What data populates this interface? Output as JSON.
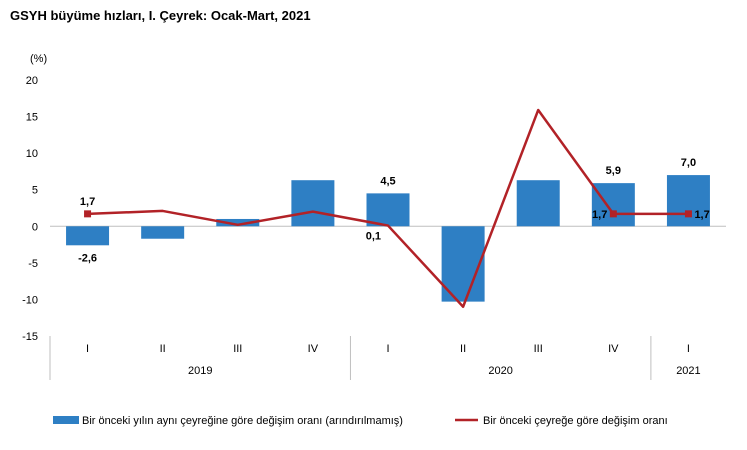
{
  "chart_data": {
    "type": "bar",
    "title": "GSYH büyüme hızları, I. Çeyrek: Ocak-Mart, 2021",
    "ylabel": "(%)",
    "ylim": [
      -15,
      20
    ],
    "yticks": [
      20,
      15,
      10,
      5,
      0,
      -5,
      -10,
      -15
    ],
    "categories": [
      "I",
      "II",
      "III",
      "IV",
      "I",
      "II",
      "III",
      "IV",
      "I"
    ],
    "year_groups": [
      {
        "label": "2019",
        "quarters": 4
      },
      {
        "label": "2020",
        "quarters": 4
      },
      {
        "label": "2021",
        "quarters": 1
      }
    ],
    "series": [
      {
        "name": "Bir önceki yılın aynı çeyreğine göre değişim oranı (arındırılmamış)",
        "kind": "bar",
        "color": "#2E7FC4",
        "values": [
          -2.6,
          -1.7,
          1.0,
          6.3,
          4.5,
          -10.3,
          6.3,
          5.9,
          7.0
        ]
      },
      {
        "name": "Bir önceki çeyreğe göre değişim oranı",
        "kind": "line",
        "color": "#B22227",
        "values": [
          1.7,
          2.1,
          0.2,
          2.0,
          0.1,
          -11.0,
          15.9,
          1.7,
          1.7
        ]
      }
    ],
    "data_labels": [
      {
        "series": 1,
        "index": 0,
        "text": "1,7",
        "pos": "above"
      },
      {
        "series": 0,
        "index": 0,
        "text": "-2,6",
        "pos": "below"
      },
      {
        "series": 0,
        "index": 4,
        "text": "4,5",
        "pos": "above"
      },
      {
        "series": 1,
        "index": 4,
        "text": "0,1",
        "pos": "left-below"
      },
      {
        "series": 0,
        "index": 7,
        "text": "5,9",
        "pos": "above"
      },
      {
        "series": 1,
        "index": 7,
        "text": "1,7",
        "pos": "left"
      },
      {
        "series": 0,
        "index": 8,
        "text": "7,0",
        "pos": "above"
      },
      {
        "series": 1,
        "index": 8,
        "text": "1,7",
        "pos": "right"
      }
    ],
    "legend_position": "bottom",
    "grid": false
  }
}
